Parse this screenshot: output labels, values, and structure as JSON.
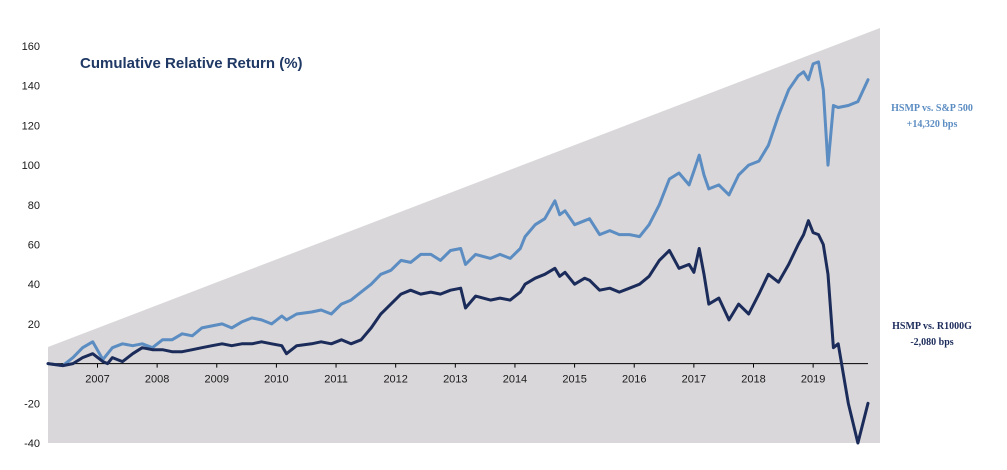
{
  "chart_data": {
    "type": "line",
    "title": "Cumulative Relative Return (%)",
    "ylim": [
      -40,
      160
    ],
    "y_ticks": [
      "160",
      "140",
      "120",
      "100",
      "80",
      "60",
      "40",
      "20",
      "-20",
      "-40"
    ],
    "y_tick_values": [
      160,
      140,
      120,
      100,
      80,
      60,
      40,
      20,
      -20,
      -40
    ],
    "x_range": [
      2006.0,
      2019.75
    ],
    "x_ticks": [
      "2007",
      "2008",
      "2009",
      "2010",
      "2011",
      "2012",
      "2013",
      "2014",
      "2015",
      "2016",
      "2017",
      "2018",
      "2019"
    ],
    "x_tick_values": [
      2006.83,
      2007.83,
      2008.83,
      2009.83,
      2010.83,
      2011.83,
      2012.83,
      2013.83,
      2014.83,
      2015.83,
      2016.83,
      2017.83,
      2018.83
    ],
    "grid": false,
    "background": {
      "shape": "triangle",
      "color": "#d9d7d9"
    },
    "colors": {
      "sp500": "#5b8cc2",
      "r1000g": "#1b2b5a"
    },
    "series": [
      {
        "key": "sp500",
        "annotation": [
          "HSMP vs. S&P 500",
          "+14,320 bps"
        ],
        "x": [
          2006.0,
          2006.25,
          2006.42,
          2006.58,
          2006.75,
          2006.92,
          2007.0,
          2007.08,
          2007.25,
          2007.42,
          2007.58,
          2007.75,
          2007.92,
          2008.08,
          2008.25,
          2008.42,
          2008.58,
          2008.75,
          2008.92,
          2009.08,
          2009.25,
          2009.42,
          2009.58,
          2009.75,
          2009.92,
          2010.0,
          2010.17,
          2010.42,
          2010.58,
          2010.75,
          2010.92,
          2011.08,
          2011.25,
          2011.42,
          2011.58,
          2011.75,
          2011.92,
          2012.08,
          2012.25,
          2012.42,
          2012.58,
          2012.75,
          2012.92,
          2013.0,
          2013.17,
          2013.42,
          2013.58,
          2013.75,
          2013.92,
          2014.0,
          2014.17,
          2014.33,
          2014.5,
          2014.58,
          2014.67,
          2014.83,
          2015.0,
          2015.08,
          2015.25,
          2015.42,
          2015.58,
          2015.75,
          2015.92,
          2016.08,
          2016.25,
          2016.42,
          2016.58,
          2016.75,
          2016.83,
          2016.92,
          2017.0,
          2017.08,
          2017.25,
          2017.42,
          2017.58,
          2017.75,
          2017.92,
          2018.08,
          2018.25,
          2018.42,
          2018.58,
          2018.67,
          2018.75,
          2018.83,
          2018.92,
          2019.0,
          2019.08,
          2019.17,
          2019.25,
          2019.42,
          2019.58,
          2019.75
        ],
        "y": [
          0,
          -1,
          3,
          8,
          11,
          2,
          5,
          8,
          10,
          9,
          10,
          8,
          12,
          12,
          15,
          14,
          18,
          19,
          20,
          18,
          21,
          23,
          22,
          20,
          24,
          22,
          25,
          26,
          27,
          25,
          30,
          32,
          36,
          40,
          45,
          47,
          52,
          51,
          55,
          55,
          52,
          57,
          58,
          50,
          55,
          53,
          55,
          53,
          58,
          64,
          70,
          73,
          82,
          75,
          77,
          70,
          72,
          73,
          65,
          67,
          65,
          65,
          64,
          70,
          80,
          93,
          96,
          90,
          97,
          105,
          95,
          88,
          90,
          85,
          95,
          100,
          102,
          110,
          125,
          138,
          145,
          147,
          143,
          151,
          152,
          138,
          100,
          130,
          129,
          130,
          132,
          143
        ]
      },
      {
        "key": "r1000g",
        "annotation": [
          "HSMP vs. R1000G",
          "-2,080 bps"
        ],
        "x": [
          2006.0,
          2006.25,
          2006.42,
          2006.58,
          2006.75,
          2006.92,
          2007.0,
          2007.08,
          2007.25,
          2007.42,
          2007.58,
          2007.75,
          2007.92,
          2008.08,
          2008.25,
          2008.42,
          2008.58,
          2008.75,
          2008.92,
          2009.08,
          2009.25,
          2009.42,
          2009.58,
          2009.75,
          2009.92,
          2010.0,
          2010.17,
          2010.42,
          2010.58,
          2010.75,
          2010.92,
          2011.08,
          2011.25,
          2011.42,
          2011.58,
          2011.75,
          2011.92,
          2012.08,
          2012.25,
          2012.42,
          2012.58,
          2012.75,
          2012.92,
          2013.0,
          2013.17,
          2013.42,
          2013.58,
          2013.75,
          2013.92,
          2014.0,
          2014.17,
          2014.33,
          2014.5,
          2014.58,
          2014.67,
          2014.83,
          2015.0,
          2015.08,
          2015.25,
          2015.42,
          2015.58,
          2015.75,
          2015.92,
          2016.08,
          2016.25,
          2016.42,
          2016.58,
          2016.75,
          2016.83,
          2016.92,
          2017.0,
          2017.08,
          2017.25,
          2017.42,
          2017.58,
          2017.75,
          2017.92,
          2018.08,
          2018.25,
          2018.42,
          2018.58,
          2018.67,
          2018.75,
          2018.83,
          2018.92,
          2019.0,
          2019.08,
          2019.17,
          2019.25,
          2019.42,
          2019.58,
          2019.75
        ],
        "y": [
          0,
          -1,
          0,
          3,
          5,
          1,
          0,
          3,
          1,
          5,
          8,
          7,
          7,
          6,
          6,
          7,
          8,
          9,
          10,
          9,
          10,
          10,
          11,
          10,
          9,
          5,
          9,
          10,
          11,
          10,
          12,
          10,
          12,
          18,
          25,
          30,
          35,
          37,
          35,
          36,
          35,
          37,
          38,
          28,
          34,
          32,
          33,
          32,
          36,
          40,
          43,
          45,
          48,
          44,
          46,
          40,
          43,
          42,
          37,
          38,
          36,
          38,
          40,
          44,
          52,
          57,
          48,
          50,
          46,
          58,
          45,
          30,
          33,
          22,
          30,
          25,
          35,
          45,
          41,
          50,
          60,
          65,
          72,
          66,
          65,
          60,
          45,
          8,
          10,
          -20,
          -40,
          -20
        ]
      }
    ]
  }
}
